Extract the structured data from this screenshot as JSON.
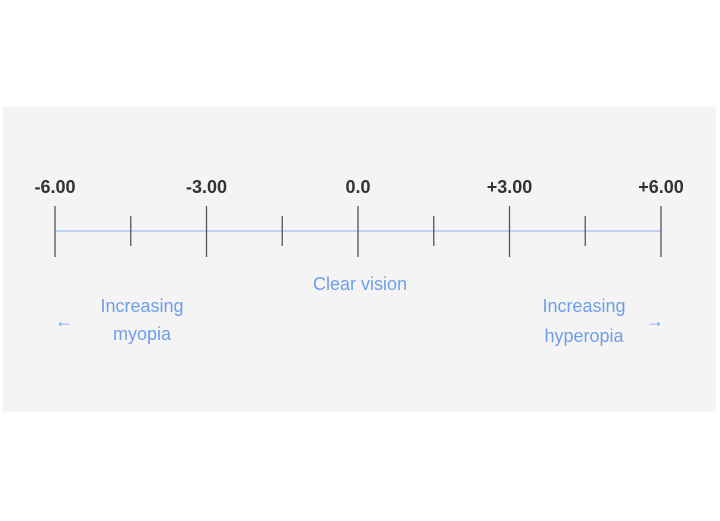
{
  "scale": {
    "major_labels": [
      "-6.00",
      "-3.00",
      "0.0",
      "+3.00",
      "+6.00"
    ],
    "major_values": [
      -6,
      -3,
      0,
      3,
      6
    ],
    "minor_values": [
      -4.5,
      -1.5,
      1.5,
      4.5
    ],
    "range": [
      -6,
      6
    ]
  },
  "center_label": "Clear vision",
  "left_label": {
    "line1": "Increasing",
    "line2": "myopia",
    "arrow": "←"
  },
  "right_label": {
    "line1": "Increasing",
    "line2": "hyperopia",
    "arrow": "→"
  },
  "colors": {
    "line": "#a9c4ef",
    "tick": "#555555",
    "accent": "#6e9ee8",
    "text": "#333333"
  }
}
